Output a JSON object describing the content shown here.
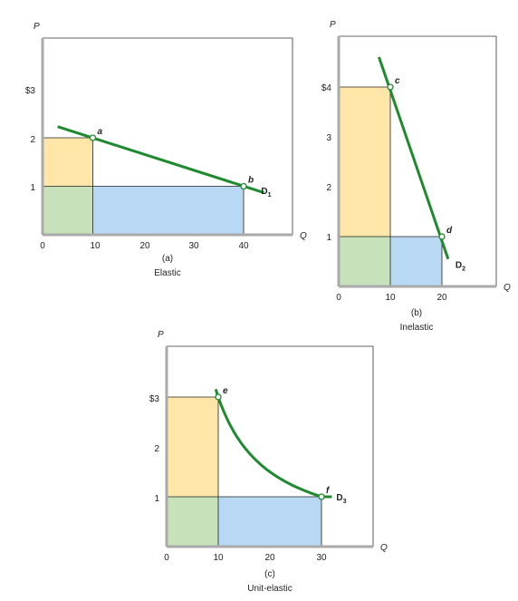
{
  "chart_data": [
    {
      "id": "a",
      "type": "line",
      "caption": "(a)",
      "subtitle": "Elastic",
      "xlabel": "Q",
      "ylabel": "P",
      "xticks": [
        "0",
        "10",
        "20",
        "30",
        "40"
      ],
      "yticks": [
        "1",
        "2",
        "$3"
      ],
      "xlim": [
        0,
        48
      ],
      "ylim": [
        0,
        3.2
      ],
      "series": [
        {
          "name": "D1",
          "x": [
            3,
            44
          ],
          "y": [
            2.23,
            0.87
          ],
          "label_main": "D",
          "label_sub": "1"
        }
      ],
      "points": [
        {
          "label": "a",
          "x": 10,
          "y": 2
        },
        {
          "label": "b",
          "x": 40,
          "y": 1
        }
      ],
      "rectangles": [
        {
          "region": "gain",
          "color": "#fde6a8",
          "x0": 0,
          "x1": 10,
          "y0": 1,
          "y1": 2
        },
        {
          "region": "common",
          "color": "#c7e1bb",
          "x0": 0,
          "x1": 10,
          "y0": 0,
          "y1": 1
        },
        {
          "region": "loss",
          "color": "#b9d8f3",
          "x0": 10,
          "x1": 40,
          "y0": 0,
          "y1": 1
        }
      ]
    },
    {
      "id": "b",
      "type": "line",
      "caption": "(b)",
      "subtitle": "Inelastic",
      "xlabel": "Q",
      "ylabel": "P",
      "xticks": [
        "0",
        "10",
        "20"
      ],
      "yticks": [
        "1",
        "2",
        "3",
        "$4"
      ],
      "xlim": [
        0,
        32
      ],
      "ylim": [
        0,
        4.9
      ],
      "series": [
        {
          "name": "D2",
          "x": [
            7.8,
            21.2
          ],
          "y": [
            4.6,
            0.55
          ],
          "label_main": "D",
          "label_sub": "2"
        }
      ],
      "points": [
        {
          "label": "c",
          "x": 10,
          "y": 4
        },
        {
          "label": "d",
          "x": 20,
          "y": 1
        }
      ],
      "rectangles": [
        {
          "region": "gain",
          "color": "#fde6a8",
          "x0": 0,
          "x1": 10,
          "y0": 1,
          "y1": 4
        },
        {
          "region": "common",
          "color": "#c7e1bb",
          "x0": 0,
          "x1": 10,
          "y0": 0,
          "y1": 1
        },
        {
          "region": "loss",
          "color": "#b9d8f3",
          "x0": 10,
          "x1": 20,
          "y0": 0,
          "y1": 1
        }
      ]
    },
    {
      "id": "c",
      "type": "line",
      "caption": "(c)",
      "subtitle": "Unit-elastic",
      "xlabel": "Q",
      "ylabel": "P",
      "xticks": [
        "0",
        "10",
        "20",
        "30"
      ],
      "yticks": [
        "1",
        "2",
        "$3"
      ],
      "xlim": [
        0,
        40
      ],
      "ylim": [
        0,
        3.9
      ],
      "series": [
        {
          "name": "D3",
          "curve": "P = 30 / Q",
          "x_from": 9.5,
          "x_to": 30,
          "tail_x": 32,
          "label_main": "D",
          "label_sub": "3"
        }
      ],
      "points": [
        {
          "label": "e",
          "x": 10,
          "y": 3
        },
        {
          "label": "f",
          "x": 30,
          "y": 1
        }
      ],
      "rectangles": [
        {
          "region": "gain",
          "color": "#fde6a8",
          "x0": 0,
          "x1": 10,
          "y0": 1,
          "y1": 3
        },
        {
          "region": "common",
          "color": "#c7e1bb",
          "x0": 0,
          "x1": 10,
          "y0": 0,
          "y1": 1
        },
        {
          "region": "loss",
          "color": "#b9d8f3",
          "x0": 10,
          "x1": 30,
          "y0": 0,
          "y1": 1
        }
      ]
    }
  ]
}
